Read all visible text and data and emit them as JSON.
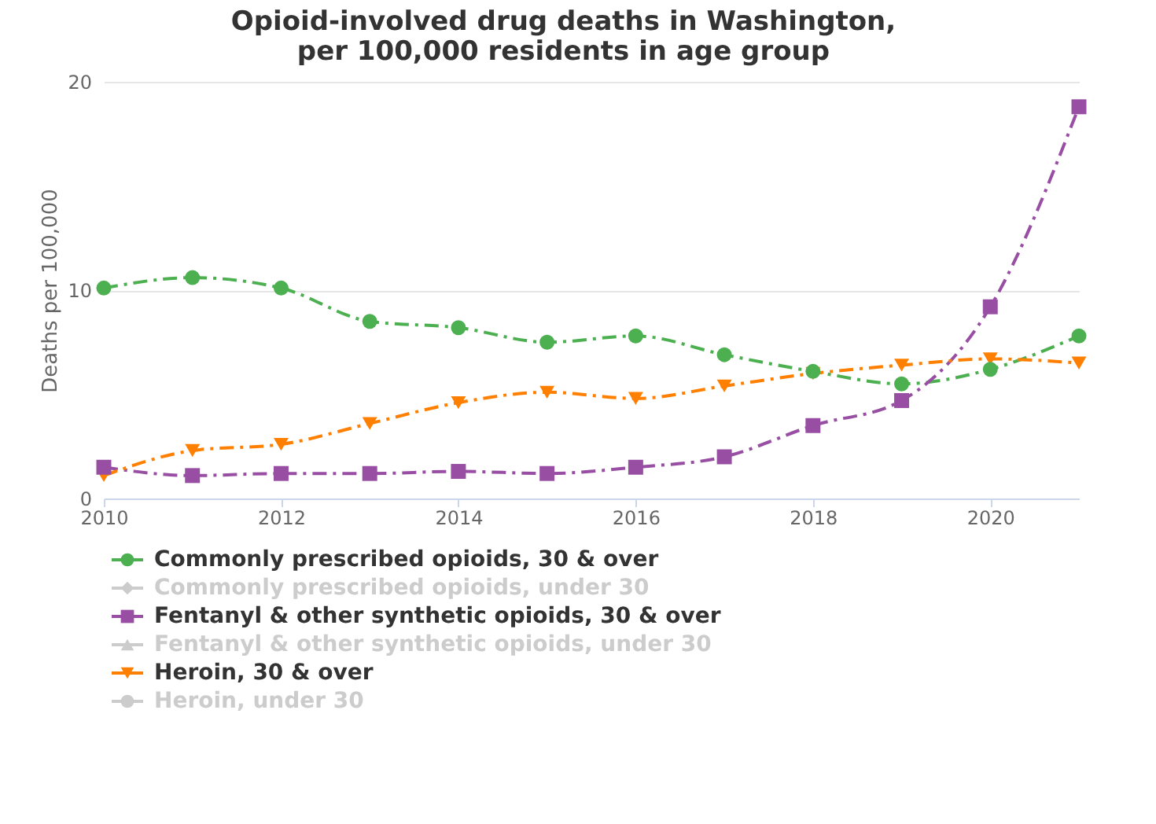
{
  "chart_data": {
    "type": "line",
    "title": "Opioid-involved drug deaths in Washington, per 100,000 residents in age group",
    "ylabel": "Deaths per 100,000",
    "x": [
      2010,
      2011,
      2012,
      2013,
      2014,
      2015,
      2016,
      2017,
      2018,
      2019,
      2020,
      2021
    ],
    "series": [
      {
        "name": "Commonly prescribed opioids, 30 & over",
        "color": "#4caf50",
        "marker": "circle",
        "values": [
          10.1,
          10.6,
          10.1,
          8.5,
          8.2,
          7.5,
          7.8,
          6.9,
          6.1,
          5.5,
          6.2,
          7.8
        ]
      },
      {
        "name": "Commonly prescribed opioids, under 30",
        "color": "#cccccc",
        "marker": "diamond",
        "values": [
          null,
          null,
          null,
          null,
          null,
          null,
          null,
          null,
          null,
          null,
          null,
          null
        ]
      },
      {
        "name": "Fentanyl & other synthetic opioids, 30 & over",
        "color": "#984ea3",
        "marker": "square",
        "values": [
          1.5,
          1.1,
          1.2,
          1.2,
          1.3,
          1.2,
          1.5,
          2.0,
          3.5,
          4.7,
          9.2,
          18.8
        ]
      },
      {
        "name": "Fentanyl & other synthetic opioids, under 30",
        "color": "#cccccc",
        "marker": "star",
        "values": [
          null,
          null,
          null,
          null,
          null,
          null,
          null,
          null,
          null,
          null,
          null,
          null
        ]
      },
      {
        "name": "Heroin, 30 & over",
        "color": "#ff7f00",
        "marker": "triangle",
        "values": [
          1.1,
          2.3,
          2.6,
          3.6,
          4.6,
          5.1,
          4.8,
          5.4,
          6.0,
          6.4,
          6.7,
          6.5
        ]
      },
      {
        "name": "Heroin, under 30",
        "color": "#cccccc",
        "marker": "circle",
        "values": [
          null,
          null,
          null,
          null,
          null,
          null,
          null,
          null,
          null,
          null,
          null,
          null
        ]
      }
    ],
    "xlim": [
      2010,
      2021
    ],
    "xticks": [
      2010,
      2012,
      2014,
      2016,
      2018,
      2020
    ],
    "ylim": [
      0,
      20
    ],
    "yticks": [
      0,
      10,
      20
    ],
    "grid": "y",
    "legend": "bottom",
    "line_style": "dashed"
  }
}
